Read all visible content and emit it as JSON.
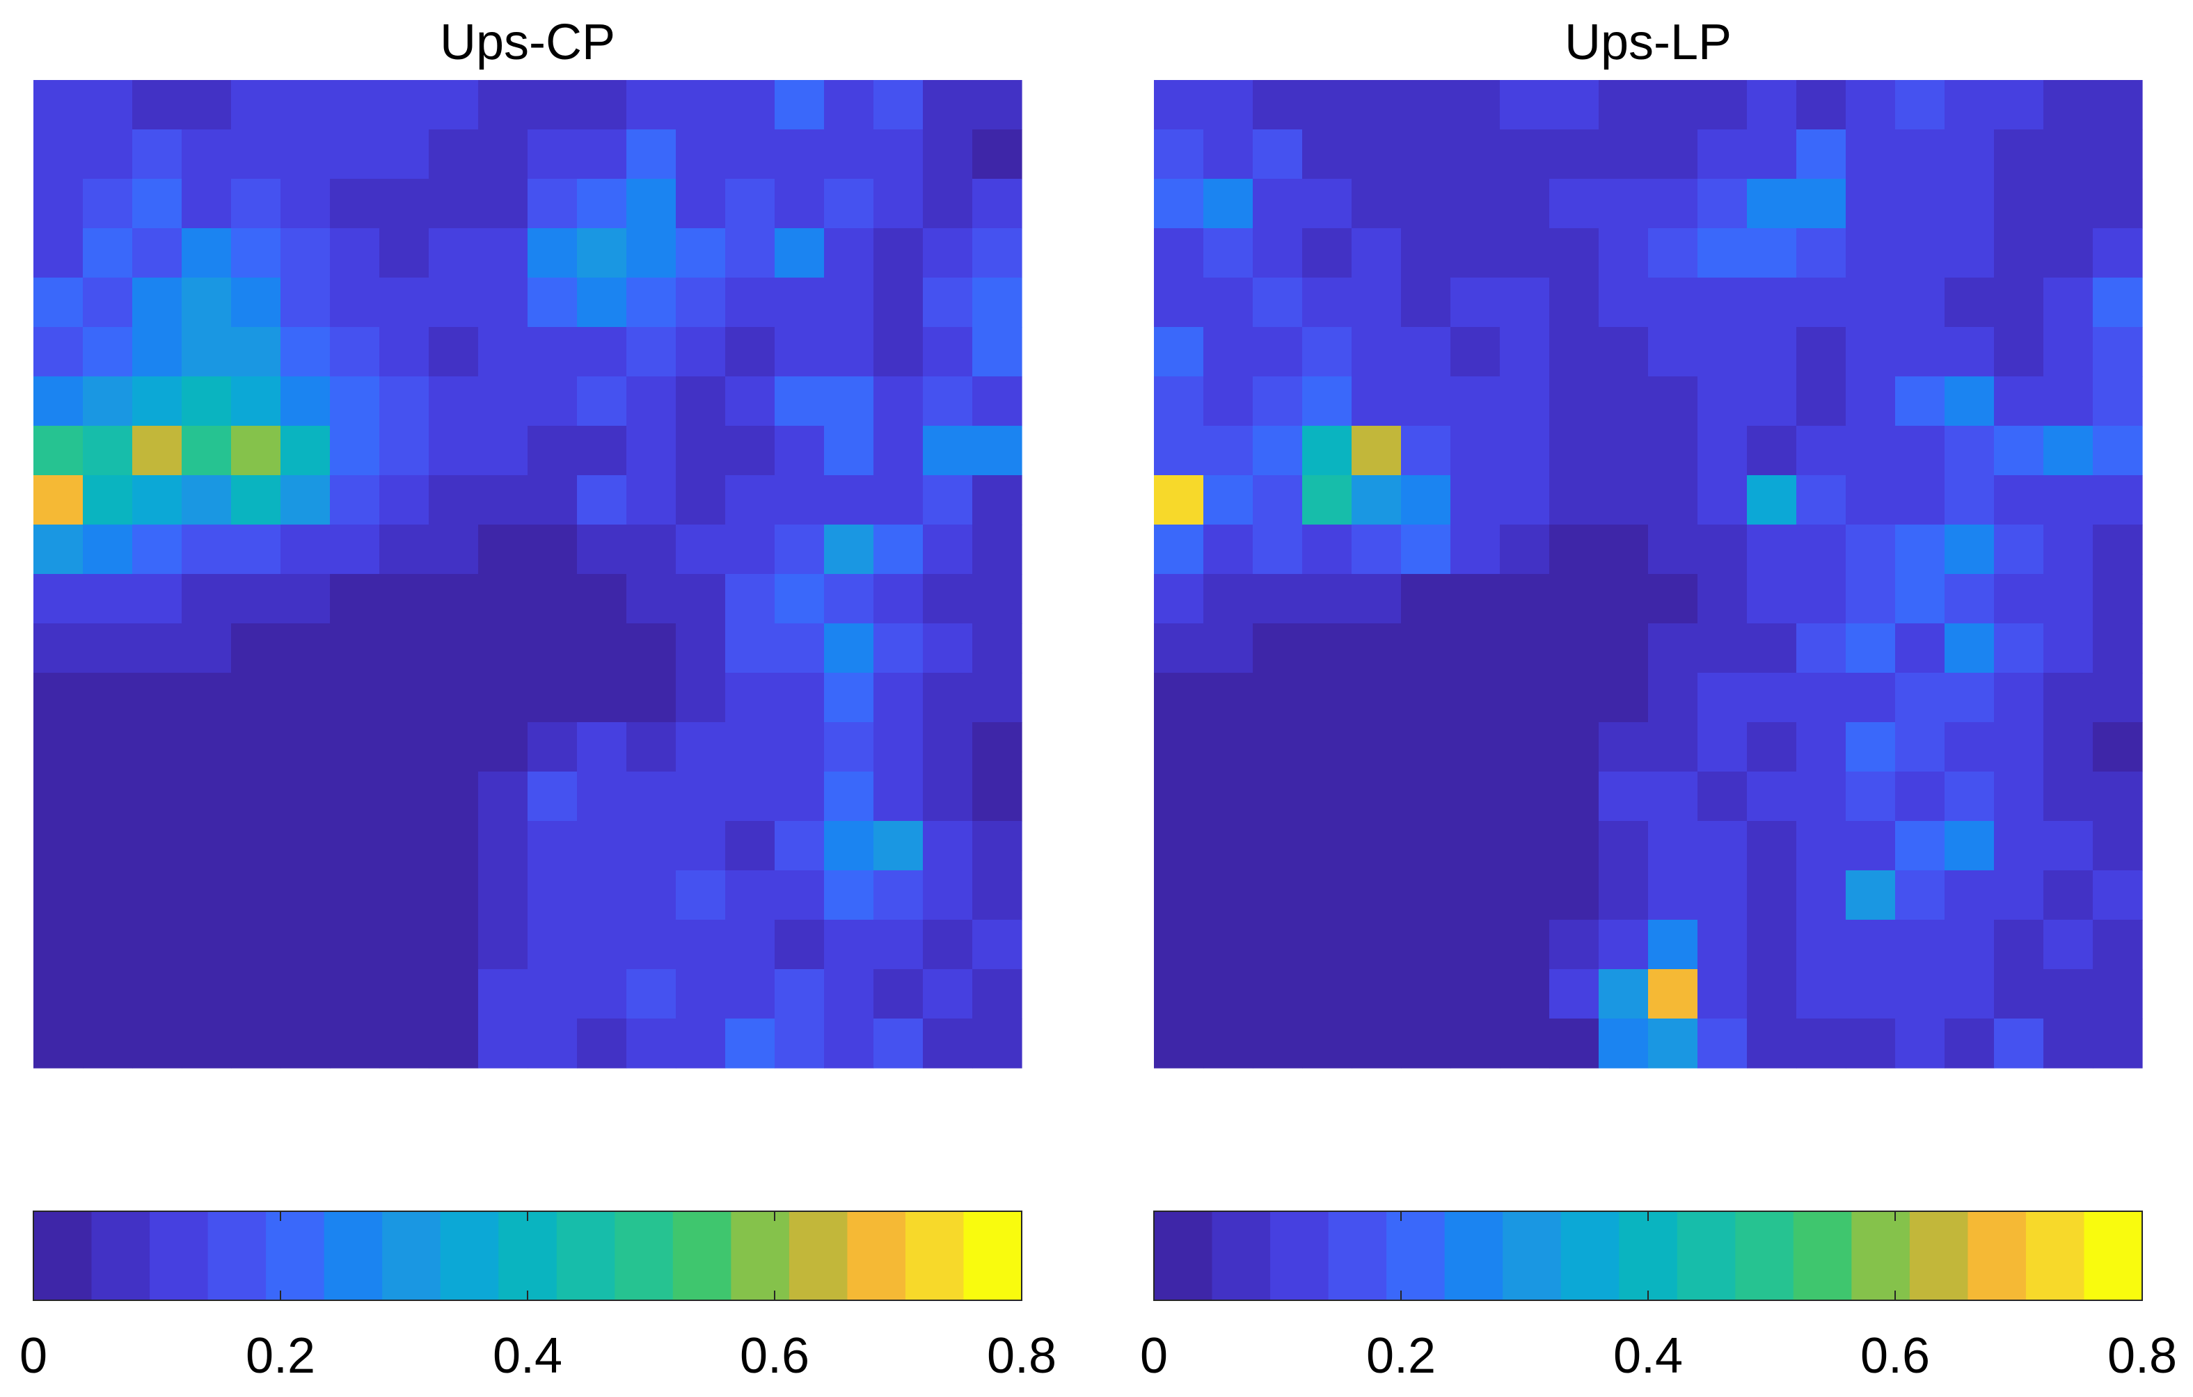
{
  "chart_data": [
    {
      "type": "heatmap",
      "title": "Ups-CP",
      "clim": [
        0,
        0.8
      ],
      "colorbar_ticks": [
        0,
        0.2,
        0.4,
        0.6,
        0.8
      ],
      "colormap": [
        "#3e26a8",
        "#4232c5",
        "#4640e0",
        "#4552f0",
        "#3a68fa",
        "#1b84f1",
        "#1a97e2",
        "#0ca8d6",
        "#0ab4c0",
        "#17bdaa",
        "#26c391",
        "#3fc66e",
        "#85c24b",
        "#c2b73a",
        "#f5b935",
        "#f7d92a",
        "#f9fb0e"
      ],
      "z": [
        [
          0.1,
          0.12,
          0.08,
          0.06,
          0.1,
          0.1,
          0.12,
          0.12,
          0.1,
          0.08,
          0.08,
          0.06,
          0.1,
          0.12,
          0.14,
          0.2,
          0.12,
          0.16,
          0.08,
          0.06
        ],
        [
          0.14,
          0.1,
          0.18,
          0.12,
          0.14,
          0.1,
          0.12,
          0.1,
          0.08,
          0.06,
          0.1,
          0.14,
          0.2,
          0.12,
          0.14,
          0.12,
          0.1,
          0.12,
          0.06,
          0.04
        ],
        [
          0.12,
          0.16,
          0.2,
          0.14,
          0.18,
          0.1,
          0.08,
          0.06,
          0.06,
          0.08,
          0.16,
          0.2,
          0.28,
          0.14,
          0.16,
          0.14,
          0.18,
          0.1,
          0.06,
          0.1
        ],
        [
          0.14,
          0.2,
          0.18,
          0.24,
          0.22,
          0.16,
          0.1,
          0.08,
          0.1,
          0.12,
          0.24,
          0.3,
          0.26,
          0.2,
          0.18,
          0.24,
          0.12,
          0.08,
          0.14,
          0.18
        ],
        [
          0.22,
          0.16,
          0.26,
          0.3,
          0.24,
          0.18,
          0.14,
          0.1,
          0.12,
          0.1,
          0.22,
          0.26,
          0.2,
          0.16,
          0.12,
          0.14,
          0.1,
          0.08,
          0.16,
          0.22
        ],
        [
          0.18,
          0.22,
          0.24,
          0.32,
          0.3,
          0.22,
          0.16,
          0.12,
          0.08,
          0.1,
          0.14,
          0.12,
          0.16,
          0.1,
          0.08,
          0.12,
          0.14,
          0.06,
          0.12,
          0.2
        ],
        [
          0.24,
          0.3,
          0.34,
          0.4,
          0.36,
          0.26,
          0.2,
          0.16,
          0.14,
          0.12,
          0.1,
          0.18,
          0.12,
          0.08,
          0.1,
          0.2,
          0.22,
          0.1,
          0.16,
          0.14
        ],
        [
          0.5,
          0.44,
          0.64,
          0.5,
          0.6,
          0.38,
          0.22,
          0.18,
          0.14,
          0.1,
          0.08,
          0.06,
          0.1,
          0.08,
          0.08,
          0.12,
          0.2,
          0.14,
          0.28,
          0.24
        ],
        [
          0.68,
          0.4,
          0.36,
          0.3,
          0.42,
          0.3,
          0.16,
          0.1,
          0.08,
          0.06,
          0.06,
          0.16,
          0.12,
          0.08,
          0.1,
          0.1,
          0.14,
          0.12,
          0.16,
          0.08
        ],
        [
          0.3,
          0.24,
          0.2,
          0.18,
          0.16,
          0.12,
          0.1,
          0.06,
          0.06,
          0.04,
          0.04,
          0.06,
          0.08,
          0.1,
          0.14,
          0.18,
          0.3,
          0.22,
          0.1,
          0.08
        ],
        [
          0.14,
          0.12,
          0.1,
          0.08,
          0.08,
          0.06,
          0.04,
          0.04,
          0.04,
          0.04,
          0.04,
          0.04,
          0.06,
          0.08,
          0.16,
          0.2,
          0.18,
          0.12,
          0.08,
          0.06
        ],
        [
          0.08,
          0.06,
          0.06,
          0.05,
          0.04,
          0.04,
          0.03,
          0.03,
          0.03,
          0.03,
          0.03,
          0.03,
          0.04,
          0.06,
          0.18,
          0.16,
          0.24,
          0.16,
          0.1,
          0.06
        ],
        [
          0.04,
          0.04,
          0.03,
          0.03,
          0.03,
          0.03,
          0.03,
          0.03,
          0.03,
          0.03,
          0.03,
          0.03,
          0.04,
          0.06,
          0.1,
          0.12,
          0.2,
          0.14,
          0.08,
          0.06
        ],
        [
          0.03,
          0.03,
          0.03,
          0.03,
          0.03,
          0.03,
          0.03,
          0.03,
          0.03,
          0.03,
          0.06,
          0.1,
          0.08,
          0.12,
          0.1,
          0.14,
          0.16,
          0.1,
          0.06,
          0.04
        ],
        [
          0.03,
          0.03,
          0.03,
          0.03,
          0.03,
          0.03,
          0.03,
          0.03,
          0.04,
          0.08,
          0.16,
          0.12,
          0.14,
          0.1,
          0.12,
          0.1,
          0.2,
          0.14,
          0.06,
          0.04
        ],
        [
          0.03,
          0.03,
          0.03,
          0.03,
          0.03,
          0.03,
          0.03,
          0.03,
          0.04,
          0.06,
          0.1,
          0.12,
          0.14,
          0.1,
          0.08,
          0.16,
          0.26,
          0.3,
          0.1,
          0.06
        ],
        [
          0.03,
          0.03,
          0.03,
          0.03,
          0.03,
          0.03,
          0.03,
          0.03,
          0.03,
          0.06,
          0.1,
          0.14,
          0.1,
          0.16,
          0.12,
          0.14,
          0.22,
          0.18,
          0.12,
          0.08
        ],
        [
          0.03,
          0.03,
          0.03,
          0.03,
          0.03,
          0.03,
          0.03,
          0.03,
          0.03,
          0.08,
          0.12,
          0.1,
          0.14,
          0.12,
          0.1,
          0.08,
          0.12,
          0.1,
          0.06,
          0.1
        ],
        [
          0.03,
          0.03,
          0.03,
          0.03,
          0.03,
          0.03,
          0.03,
          0.03,
          0.03,
          0.1,
          0.14,
          0.12,
          0.16,
          0.12,
          0.14,
          0.18,
          0.1,
          0.08,
          0.1,
          0.08
        ],
        [
          0.03,
          0.03,
          0.03,
          0.03,
          0.03,
          0.03,
          0.03,
          0.03,
          0.03,
          0.14,
          0.1,
          0.08,
          0.1,
          0.12,
          0.2,
          0.16,
          0.1,
          0.18,
          0.08,
          0.06
        ]
      ]
    },
    {
      "type": "heatmap",
      "title": "Ups-LP",
      "clim": [
        0,
        0.8
      ],
      "colorbar_ticks": [
        0,
        0.2,
        0.4,
        0.6,
        0.8
      ],
      "colormap": [
        "#3e26a8",
        "#4232c5",
        "#4640e0",
        "#4552f0",
        "#3a68fa",
        "#1b84f1",
        "#1a97e2",
        "#0ca8d6",
        "#0ab4c0",
        "#17bdaa",
        "#26c391",
        "#3fc66e",
        "#85c24b",
        "#c2b73a",
        "#f5b935",
        "#f7d92a",
        "#f9fb0e"
      ],
      "z": [
        [
          0.1,
          0.14,
          0.08,
          0.06,
          0.08,
          0.06,
          0.08,
          0.1,
          0.1,
          0.08,
          0.06,
          0.08,
          0.1,
          0.08,
          0.12,
          0.18,
          0.14,
          0.1,
          0.06,
          0.06
        ],
        [
          0.16,
          0.12,
          0.18,
          0.08,
          0.06,
          0.08,
          0.06,
          0.06,
          0.06,
          0.08,
          0.08,
          0.1,
          0.1,
          0.22,
          0.12,
          0.14,
          0.1,
          0.08,
          0.06,
          0.06
        ],
        [
          0.22,
          0.26,
          0.14,
          0.1,
          0.08,
          0.06,
          0.06,
          0.08,
          0.1,
          0.12,
          0.12,
          0.16,
          0.24,
          0.28,
          0.14,
          0.1,
          0.12,
          0.08,
          0.06,
          0.08
        ],
        [
          0.12,
          0.18,
          0.14,
          0.08,
          0.1,
          0.06,
          0.06,
          0.08,
          0.08,
          0.1,
          0.16,
          0.22,
          0.2,
          0.16,
          0.14,
          0.12,
          0.1,
          0.06,
          0.08,
          0.14
        ],
        [
          0.14,
          0.1,
          0.16,
          0.12,
          0.1,
          0.08,
          0.1,
          0.1,
          0.08,
          0.1,
          0.14,
          0.12,
          0.12,
          0.1,
          0.1,
          0.12,
          0.08,
          0.06,
          0.12,
          0.2
        ],
        [
          0.2,
          0.12,
          0.14,
          0.18,
          0.14,
          0.1,
          0.08,
          0.1,
          0.08,
          0.08,
          0.1,
          0.12,
          0.1,
          0.08,
          0.1,
          0.14,
          0.12,
          0.08,
          0.14,
          0.18
        ],
        [
          0.16,
          0.12,
          0.16,
          0.2,
          0.14,
          0.1,
          0.12,
          0.1,
          0.08,
          0.06,
          0.08,
          0.1,
          0.1,
          0.08,
          0.1,
          0.2,
          0.26,
          0.14,
          0.12,
          0.16
        ],
        [
          0.18,
          0.16,
          0.2,
          0.4,
          0.62,
          0.18,
          0.12,
          0.1,
          0.08,
          0.06,
          0.08,
          0.1,
          0.08,
          0.1,
          0.12,
          0.14,
          0.16,
          0.2,
          0.24,
          0.22
        ],
        [
          0.72,
          0.22,
          0.18,
          0.46,
          0.3,
          0.24,
          0.14,
          0.1,
          0.08,
          0.06,
          0.06,
          0.1,
          0.36,
          0.16,
          0.1,
          0.12,
          0.18,
          0.12,
          0.14,
          0.1
        ],
        [
          0.22,
          0.14,
          0.16,
          0.12,
          0.16,
          0.2,
          0.1,
          0.06,
          0.04,
          0.04,
          0.06,
          0.08,
          0.14,
          0.1,
          0.18,
          0.2,
          0.24,
          0.16,
          0.1,
          0.08
        ],
        [
          0.1,
          0.08,
          0.08,
          0.06,
          0.06,
          0.04,
          0.04,
          0.04,
          0.04,
          0.04,
          0.04,
          0.06,
          0.1,
          0.14,
          0.16,
          0.22,
          0.18,
          0.14,
          0.1,
          0.08
        ],
        [
          0.06,
          0.05,
          0.04,
          0.04,
          0.04,
          0.03,
          0.03,
          0.03,
          0.04,
          0.04,
          0.05,
          0.06,
          0.08,
          0.16,
          0.2,
          0.14,
          0.24,
          0.16,
          0.1,
          0.06
        ],
        [
          0.04,
          0.03,
          0.03,
          0.03,
          0.03,
          0.03,
          0.03,
          0.03,
          0.03,
          0.04,
          0.06,
          0.12,
          0.1,
          0.12,
          0.14,
          0.16,
          0.18,
          0.12,
          0.08,
          0.06
        ],
        [
          0.03,
          0.03,
          0.03,
          0.03,
          0.03,
          0.03,
          0.03,
          0.03,
          0.04,
          0.06,
          0.08,
          0.1,
          0.08,
          0.14,
          0.22,
          0.16,
          0.14,
          0.1,
          0.06,
          0.04
        ],
        [
          0.03,
          0.03,
          0.03,
          0.03,
          0.03,
          0.03,
          0.03,
          0.03,
          0.04,
          0.1,
          0.12,
          0.08,
          0.1,
          0.12,
          0.16,
          0.14,
          0.18,
          0.12,
          0.08,
          0.06
        ],
        [
          0.03,
          0.03,
          0.03,
          0.03,
          0.03,
          0.03,
          0.03,
          0.03,
          0.04,
          0.08,
          0.12,
          0.1,
          0.08,
          0.1,
          0.12,
          0.2,
          0.26,
          0.14,
          0.1,
          0.08
        ],
        [
          0.03,
          0.03,
          0.03,
          0.03,
          0.03,
          0.03,
          0.03,
          0.03,
          0.03,
          0.06,
          0.14,
          0.1,
          0.08,
          0.12,
          0.3,
          0.16,
          0.12,
          0.14,
          0.08,
          0.1
        ],
        [
          0.03,
          0.03,
          0.03,
          0.03,
          0.03,
          0.03,
          0.03,
          0.03,
          0.06,
          0.14,
          0.24,
          0.1,
          0.08,
          0.1,
          0.14,
          0.12,
          0.1,
          0.08,
          0.12,
          0.06
        ],
        [
          0.03,
          0.03,
          0.03,
          0.03,
          0.03,
          0.03,
          0.03,
          0.03,
          0.1,
          0.3,
          0.66,
          0.14,
          0.08,
          0.12,
          0.1,
          0.14,
          0.1,
          0.08,
          0.06,
          0.08
        ],
        [
          0.03,
          0.03,
          0.03,
          0.03,
          0.03,
          0.03,
          0.03,
          0.03,
          0.04,
          0.24,
          0.32,
          0.18,
          0.06,
          0.08,
          0.06,
          0.12,
          0.08,
          0.16,
          0.06,
          0.06
        ]
      ]
    }
  ]
}
